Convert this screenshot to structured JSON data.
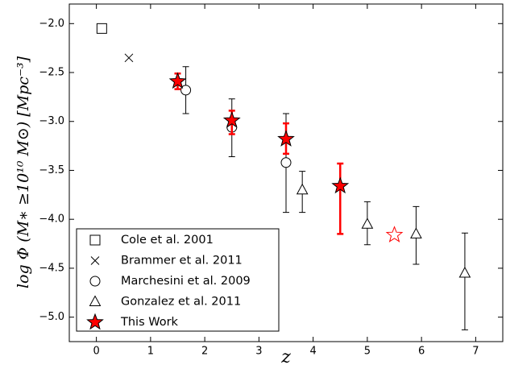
{
  "chart_data": {
    "type": "scatter",
    "x_label": "z",
    "y_label": "log Φ (M∗ ≥10¹⁰ M⊙) [Mpc⁻³]",
    "xlim": [
      -0.5,
      7.5
    ],
    "xticks": [
      0,
      1,
      2,
      3,
      4,
      5,
      6,
      7
    ],
    "ylim": [
      -5.25,
      -1.8
    ],
    "yticks": [
      {
        "value": -2.0,
        "label": "−2.0"
      },
      {
        "value": -2.5,
        "label": "−2.5"
      },
      {
        "value": -3.0,
        "label": "−3.0"
      },
      {
        "value": -3.5,
        "label": "−3.5"
      },
      {
        "value": -4.0,
        "label": "−4.0"
      },
      {
        "value": -4.5,
        "label": "−4.5"
      },
      {
        "value": -5.0,
        "label": "−5.0"
      }
    ],
    "legend": "lower left",
    "series": [
      {
        "name": "Cole et al. 2001",
        "marker": "square",
        "color": "#000000",
        "face": "none",
        "x": [
          0.1
        ],
        "values": [
          -2.05
        ]
      },
      {
        "name": "Brammer et al. 2011",
        "marker": "x",
        "color": "#000000",
        "face": "none",
        "x": [
          0.6
        ],
        "values": [
          -2.35
        ]
      },
      {
        "name": "Marchesini et al. 2009",
        "marker": "circle",
        "color": "#000000",
        "face": "#ffffff",
        "x": [
          1.65,
          2.5,
          3.5
        ],
        "values": [
          -2.68,
          -3.06,
          -3.42
        ],
        "yerr_high": [
          0.24,
          0.29,
          0.5
        ],
        "yerr_low": [
          0.24,
          0.3,
          0.51
        ]
      },
      {
        "name": "Gonzalez et al. 2011",
        "marker": "triangle",
        "color": "#000000",
        "face": "#ffffff",
        "x": [
          3.8,
          5.0,
          5.9,
          6.8
        ],
        "values": [
          -3.7,
          -4.05,
          -4.15,
          -4.55
        ],
        "yerr_high": [
          0.19,
          0.23,
          0.28,
          0.41
        ],
        "yerr_low": [
          0.23,
          0.21,
          0.31,
          0.58
        ]
      },
      {
        "name": "This Work",
        "marker": "star",
        "color": "#ff0000",
        "face": "#ff0000",
        "edge": "#000000",
        "x": [
          1.5,
          2.5,
          3.5,
          4.5,
          5.5
        ],
        "values": [
          -2.59,
          -2.99,
          -3.18,
          -3.66,
          -4.16
        ],
        "yerr_high": [
          0.08,
          0.1,
          0.16,
          0.23,
          null
        ],
        "yerr_low": [
          0.08,
          0.14,
          0.15,
          0.49,
          null
        ],
        "markers_filled": [
          true,
          true,
          true,
          true,
          false
        ]
      }
    ]
  }
}
